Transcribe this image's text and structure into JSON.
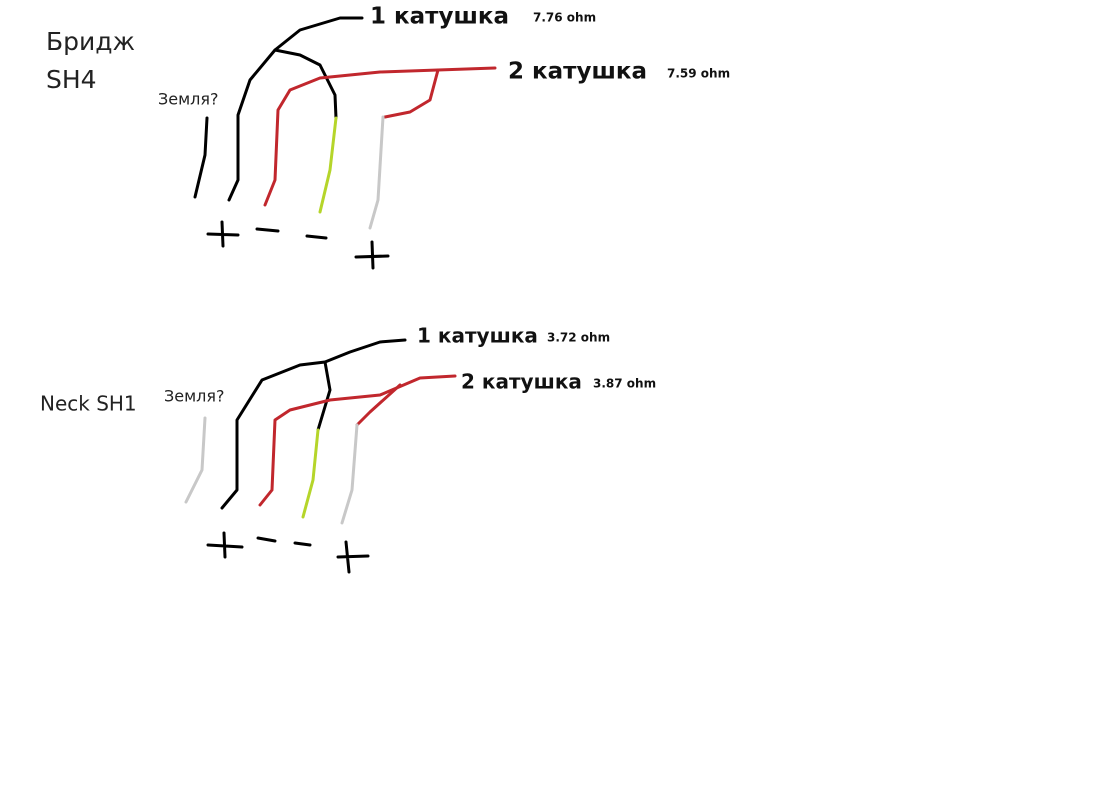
{
  "diagrams": [
    {
      "title_lines": [
        "Бридж",
        "SH4"
      ],
      "ground_label": "Земля?",
      "coils": [
        {
          "label": "1 катушка",
          "resistance": "7.76 ohm"
        },
        {
          "label": "2 катушка",
          "resistance": "7.59 ohm"
        }
      ]
    },
    {
      "title_lines": [
        "Neck SH1"
      ],
      "ground_label": "Земля?",
      "coils": [
        {
          "label": "1 катушка",
          "resistance": "3.72 ohm"
        },
        {
          "label": "2 катушка",
          "resistance": "3.87 ohm"
        }
      ]
    }
  ]
}
